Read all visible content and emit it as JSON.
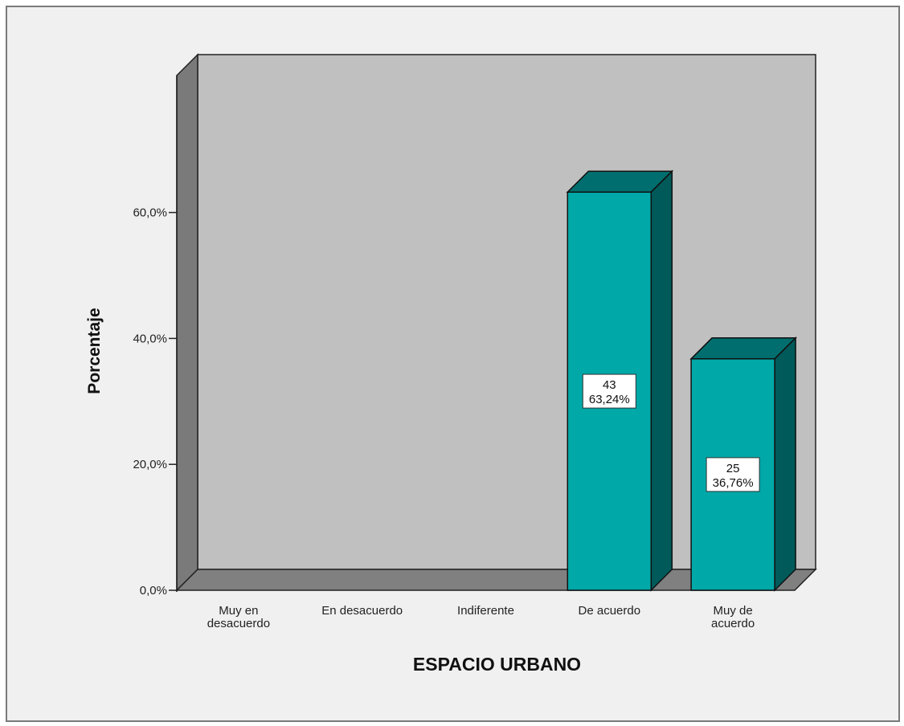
{
  "chart_data": {
    "type": "bar",
    "style": "3d",
    "title": "",
    "xlabel": "ESPACIO URBANO",
    "ylabel": "Porcentaje",
    "ylim": [
      0,
      60
    ],
    "yticks": [
      "0,0%",
      "20,0%",
      "40,0%",
      "60,0%"
    ],
    "categories": [
      [
        "Muy en",
        "desacuerdo"
      ],
      [
        "En desacuerdo"
      ],
      [
        "Indiferente"
      ],
      [
        "De acuerdo"
      ],
      [
        "Muy de",
        "acuerdo"
      ]
    ],
    "values": [
      0,
      0,
      0,
      63.24,
      36.76
    ],
    "counts": [
      null,
      null,
      null,
      "43",
      "25"
    ],
    "value_labels": [
      null,
      null,
      null,
      "63,24%",
      "36,76%"
    ],
    "grid": false,
    "colors": {
      "bar_front": "#00a8a8",
      "bar_top": "#006e6e",
      "bar_side": "#005a5a",
      "wall_back": "#c0c0c0",
      "wall_side": "#7a7a7a",
      "floor": "#808080",
      "background": "#f0f0f0"
    }
  }
}
